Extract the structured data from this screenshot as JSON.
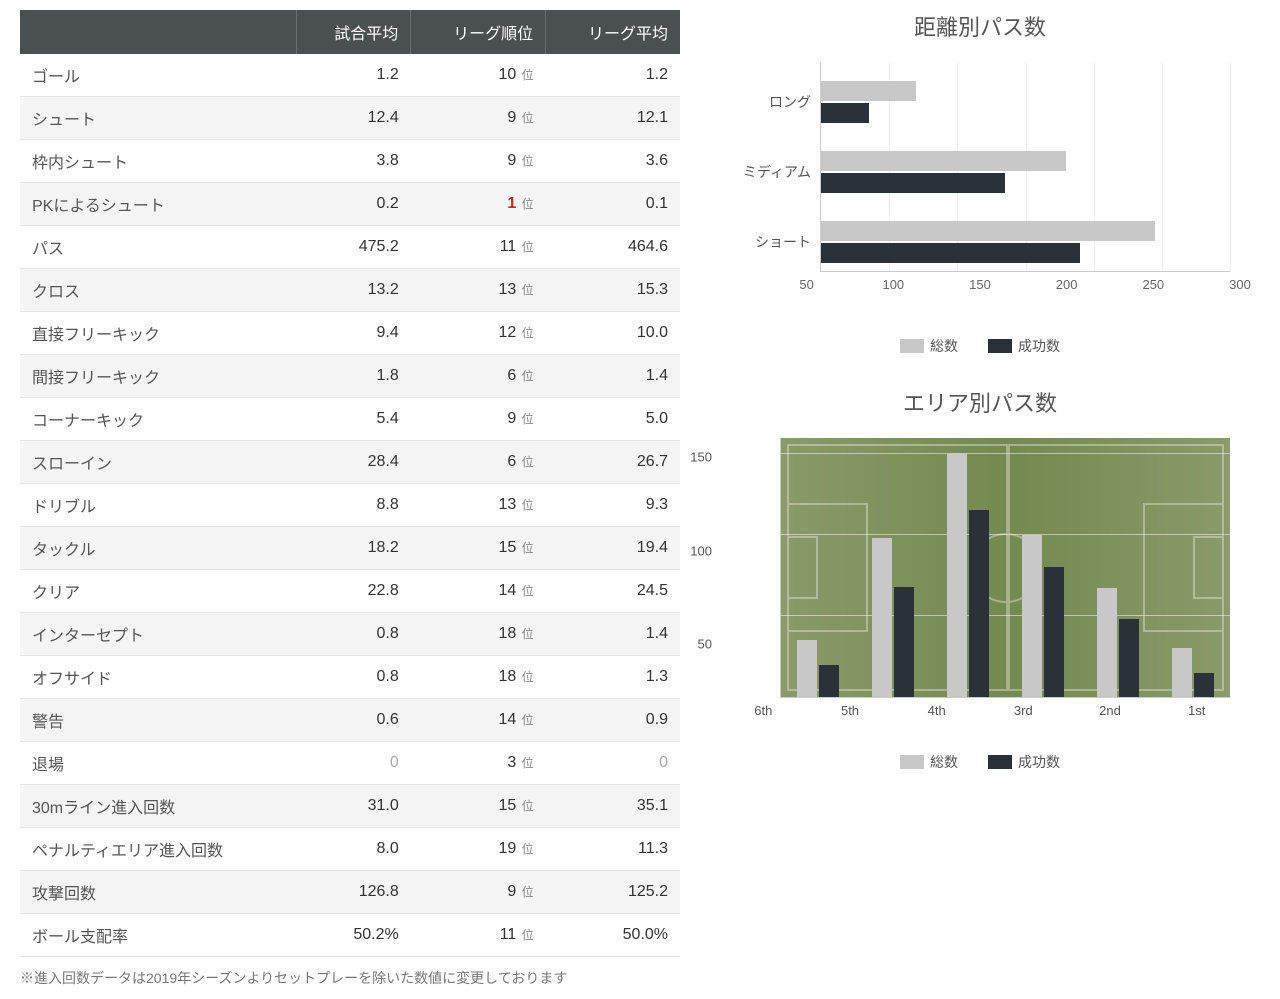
{
  "table": {
    "columns": [
      "",
      "試合平均",
      "リーグ順位",
      "リーグ平均"
    ],
    "rank_suffix": "位",
    "rows": [
      {
        "label": "ゴール",
        "avg": "1.2",
        "rank": "10",
        "league": "1.2"
      },
      {
        "label": "シュート",
        "avg": "12.4",
        "rank": "9",
        "league": "12.1"
      },
      {
        "label": "枠内シュート",
        "avg": "3.8",
        "rank": "9",
        "league": "3.6"
      },
      {
        "label": "PKによるシュート",
        "avg": "0.2",
        "rank": "1",
        "league": "0.1",
        "rank_highlight": true
      },
      {
        "label": "パス",
        "avg": "475.2",
        "rank": "11",
        "league": "464.6"
      },
      {
        "label": "クロス",
        "avg": "13.2",
        "rank": "13",
        "league": "15.3"
      },
      {
        "label": "直接フリーキック",
        "avg": "9.4",
        "rank": "12",
        "league": "10.0"
      },
      {
        "label": "間接フリーキック",
        "avg": "1.8",
        "rank": "6",
        "league": "1.4"
      },
      {
        "label": "コーナーキック",
        "avg": "5.4",
        "rank": "9",
        "league": "5.0"
      },
      {
        "label": "スローイン",
        "avg": "28.4",
        "rank": "6",
        "league": "26.7"
      },
      {
        "label": "ドリブル",
        "avg": "8.8",
        "rank": "13",
        "league": "9.3"
      },
      {
        "label": "タックル",
        "avg": "18.2",
        "rank": "15",
        "league": "19.4"
      },
      {
        "label": "クリア",
        "avg": "22.8",
        "rank": "14",
        "league": "24.5"
      },
      {
        "label": "インターセプト",
        "avg": "0.8",
        "rank": "18",
        "league": "1.4"
      },
      {
        "label": "オフサイド",
        "avg": "0.8",
        "rank": "18",
        "league": "1.3"
      },
      {
        "label": "警告",
        "avg": "0.6",
        "rank": "14",
        "league": "0.9"
      },
      {
        "label": "退場",
        "avg": "0",
        "rank": "3",
        "league": "0",
        "zero": true
      },
      {
        "label": "30mライン進入回数",
        "avg": "31.0",
        "rank": "15",
        "league": "35.1"
      },
      {
        "label": "ペナルティエリア進入回数",
        "avg": "8.0",
        "rank": "19",
        "league": "11.3"
      },
      {
        "label": "攻撃回数",
        "avg": "126.8",
        "rank": "9",
        "league": "125.2"
      },
      {
        "label": "ボール支配率",
        "avg": "50.2%",
        "rank": "11",
        "league": "50.0%"
      }
    ],
    "footnote": "※進入回数データは2019年シーズンよりセットプレーを除いた数値に変更しております"
  },
  "chart1": {
    "title": "距離別パス数",
    "type": "horizontal-grouped-bar",
    "categories": [
      "ロング",
      "ミディアム",
      "ショート"
    ],
    "series": [
      {
        "name": "総数",
        "color": "#c8c8c8",
        "values": [
          70,
          180,
          245
        ]
      },
      {
        "name": "成功数",
        "color": "#2a3138",
        "values": [
          35,
          135,
          190
        ]
      }
    ],
    "xticks": [
      50,
      100,
      150,
      200,
      250,
      300
    ],
    "xmax": 300
  },
  "chart2": {
    "title": "エリア別パス数",
    "type": "vertical-grouped-bar-pitch",
    "categories": [
      "6th",
      "5th",
      "4th",
      "3rd",
      "2nd",
      "1st"
    ],
    "series": [
      {
        "name": "総数",
        "color": "#c8c8c8",
        "values": [
          35,
          98,
          150,
          100,
          67,
          30
        ]
      },
      {
        "name": "成功数",
        "color": "#2a3138",
        "values": [
          20,
          68,
          115,
          80,
          48,
          15
        ]
      }
    ],
    "yticks": [
      50,
      100,
      150
    ],
    "ymax": 160,
    "pitch_bg": "#7e9360"
  },
  "legend": {
    "total": "総数",
    "success": "成功数"
  }
}
